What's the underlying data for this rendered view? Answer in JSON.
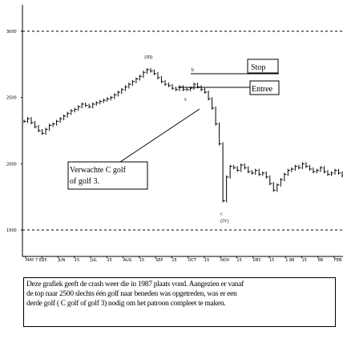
{
  "chart_data": {
    "type": "line",
    "title": "",
    "xlabel": "",
    "ylabel": "",
    "ylim": [
      1350,
      3150
    ],
    "y_ticks": [
      "3000",
      "2500",
      "2000",
      "1500"
    ],
    "x_tick_labels": [
      "MAY 7 87",
      "15",
      "JUN",
      "15",
      "JUL",
      "15",
      "AUG",
      "15",
      "SEP",
      "15",
      "OCT",
      "15",
      "NOV",
      "15",
      "DEC",
      "15",
      "1 88",
      "15",
      "88",
      "FEB"
    ],
    "reference_lines": [
      3000,
      1500
    ],
    "series": [
      {
        "values": [
          2320,
          2340,
          2310,
          2280,
          2250,
          2230,
          2260,
          2290,
          2300,
          2320,
          2340,
          2360,
          2380,
          2400,
          2410,
          2430,
          2450,
          2440,
          2430,
          2450,
          2460,
          2470,
          2480,
          2490,
          2500,
          2520,
          2540,
          2560,
          2580,
          2600,
          2620,
          2640,
          2660,
          2690,
          2710,
          2700,
          2680,
          2650,
          2620,
          2600,
          2590,
          2570,
          2560,
          2580,
          2560,
          2560,
          2570,
          2600,
          2580,
          2560,
          2540,
          2490,
          2420,
          2300,
          2150,
          1720,
          1900,
          1980,
          1970,
          1950,
          1990,
          1970,
          1940,
          1930,
          1950,
          1920,
          1930,
          1900,
          1850,
          1800,
          1840,
          1880,
          1920,
          1950,
          1960,
          1980,
          1970,
          2000,
          1980,
          1960,
          1940,
          1950,
          1970,
          1940,
          1920,
          1930,
          1950,
          1930,
          1910
        ]
      }
    ],
    "wave_labels": [
      "(III)",
      "b",
      "a",
      "c",
      "(IV)"
    ],
    "annotations": [
      {
        "text": "Stop",
        "level": 2620
      },
      {
        "text": "Entree",
        "level": 2530
      },
      {
        "lines": [
          "Verwachte C golf",
          "of golf 3."
        ]
      }
    ]
  },
  "caption": [
    "Deze grafiek geeft de crash weer die in 1987 plaats vond. Aangezien er vanaf",
    "de top naar 2500 slechts één golf naar beneden was opgetreden, was er een",
    "derde golf ( C golf of golf 3) nodig om het patroon compleet te maken."
  ]
}
